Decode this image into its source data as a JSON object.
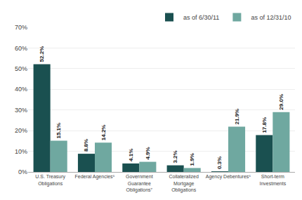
{
  "chart_data": {
    "type": "bar",
    "categories": [
      "U.S. Treasury\nObligations",
      "Federal Agencies⁶",
      "Government\nGuarantee\nObligations⁷",
      "Collateralized\nMortgage\nObligations",
      "Agency Debentures⁶",
      "Short-term\nInvestments"
    ],
    "series": [
      {
        "name": "as of 6/30/11",
        "color": "#1a5050",
        "values": [
          52.2,
          8.8,
          4.1,
          3.2,
          0.3,
          17.8
        ],
        "value_labels": [
          "52.2%",
          "8.8%",
          "4.1%",
          "3.2%",
          "0.3%",
          "17.8%"
        ]
      },
      {
        "name": "as of 12/31/10",
        "color": "#6fa8a0",
        "values": [
          15.1,
          14.2,
          4.9,
          1.9,
          21.9,
          29.0
        ],
        "value_labels": [
          "15.1%",
          "14.2%",
          "4.9%",
          "1.9%",
          "21.9%",
          "29.0%"
        ]
      }
    ],
    "ylim": [
      0,
      70
    ],
    "yticks": [
      {
        "value": 0,
        "label": "0%"
      },
      {
        "value": 10,
        "label": "10%"
      },
      {
        "value": 20,
        "label": "20%"
      },
      {
        "value": 30,
        "label": "30%"
      },
      {
        "value": 40,
        "label": "40%"
      },
      {
        "value": 50,
        "label": "50%"
      },
      {
        "value": 60,
        "label": "60%"
      },
      {
        "value": 70,
        "label": "70%"
      }
    ],
    "grid": true,
    "legend": "top",
    "data_labels": true
  }
}
